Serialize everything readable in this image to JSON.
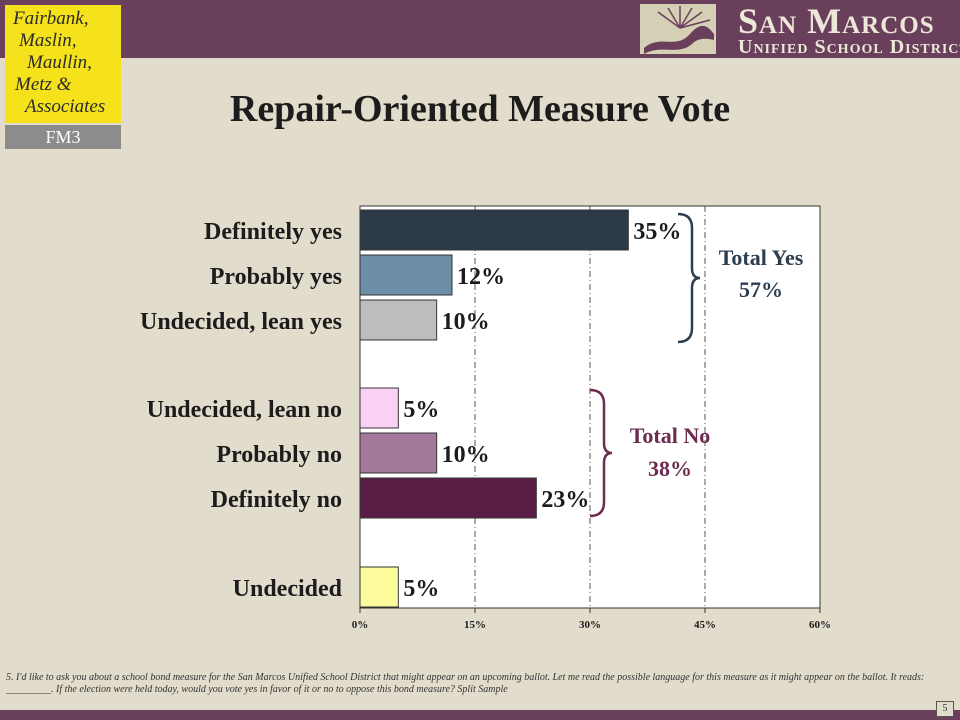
{
  "header": {
    "fm_logo_lines": [
      "Fairbank,",
      "Maslin,",
      "Maullin,",
      "Metz &",
      "Associates"
    ],
    "fm_logo_abbrev": "FM3",
    "district_line1": "San Marcos",
    "district_line2": "Unified School District"
  },
  "colors": {
    "header_bar": "#6a3f5c",
    "background": "#e1dccb",
    "yes_bracket": "#2c3e4f",
    "no_bracket": "#6b2c4f"
  },
  "chart_data": {
    "type": "bar",
    "orientation": "horizontal",
    "title": "Repair-Oriented Measure Vote",
    "categories": [
      "Definitely yes",
      "Probably yes",
      "Undecided, lean yes",
      "Undecided, lean no",
      "Probably no",
      "Definitely no",
      "Undecided"
    ],
    "values": [
      35,
      12,
      10,
      5,
      10,
      23,
      5
    ],
    "value_labels": [
      "35%",
      "12%",
      "10%",
      "5%",
      "10%",
      "23%",
      "5%"
    ],
    "bar_colors": [
      "#2b3a46",
      "#6c8fa7",
      "#bdbdbd",
      "#fbd0f5",
      "#a4789a",
      "#5a1d45",
      "#fbfb9c"
    ],
    "xlim": [
      0,
      60
    ],
    "xticks": [
      "0%",
      "15%",
      "30%",
      "45%",
      "60%"
    ],
    "gridlines": "vertical dashed",
    "groups": [
      {
        "label": "Total Yes",
        "value": "57%",
        "color": "#2c3e4f"
      },
      {
        "label": "Total No",
        "value": "38%",
        "color": "#6b2c4f"
      }
    ]
  },
  "footnote": "5. I'd like to ask you about a school bond measure for the San Marcos Unified School District that might appear on an upcoming ballot. Let me read the possible language for this measure as it might appear on the ballot. It reads: _________. If the election were held today, would you vote yes in favor of it or no to oppose this bond measure? Split Sample",
  "page_number": "5"
}
